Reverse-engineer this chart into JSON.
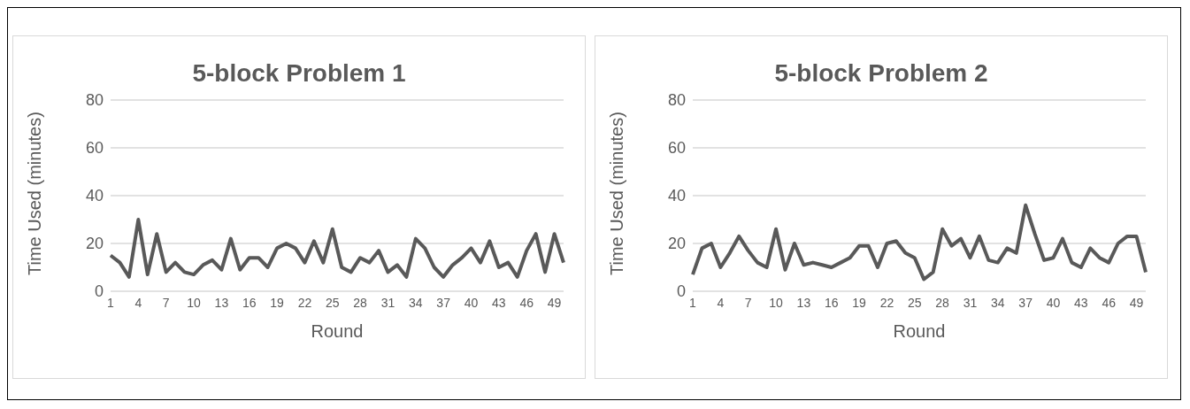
{
  "chart_data": [
    {
      "type": "line",
      "title": "5-block Problem 1",
      "xlabel": "Round",
      "ylabel": "Time Used (minutes)",
      "categories": [
        "1",
        null,
        null,
        "4",
        null,
        null,
        "7",
        null,
        null,
        "10",
        null,
        null,
        "13",
        null,
        null,
        "16",
        null,
        null,
        "19",
        null,
        null,
        "22",
        null,
        null,
        "25",
        null,
        null,
        "28",
        null,
        null,
        "31",
        null,
        null,
        "34",
        null,
        null,
        "37",
        null,
        null,
        "40",
        null,
        null,
        "43",
        null,
        null,
        "46",
        null,
        null,
        "49",
        null
      ],
      "series": [
        {
          "color": "#595959",
          "values": [
            15,
            12,
            6,
            30,
            7,
            24,
            8,
            12,
            8,
            7,
            11,
            13,
            9,
            22,
            9,
            14,
            14,
            10,
            18,
            20,
            18,
            12,
            21,
            12,
            26,
            10,
            8,
            14,
            12,
            17,
            8,
            11,
            6,
            22,
            18,
            10,
            6,
            11,
            14,
            18,
            12,
            21,
            10,
            12,
            6,
            17,
            24,
            8,
            24,
            12
          ]
        }
      ],
      "ylim": [
        0,
        80
      ],
      "yticks": [
        0,
        20,
        40,
        60,
        80
      ],
      "grid": "y",
      "marker": "none",
      "line_style": "solid",
      "legend": false
    },
    {
      "type": "line",
      "title": "5-block Problem 2",
      "xlabel": "Round",
      "ylabel": "Time Used (minutes)",
      "categories": [
        "1",
        null,
        null,
        "4",
        null,
        null,
        "7",
        null,
        null,
        "10",
        null,
        null,
        "13",
        null,
        null,
        "16",
        null,
        null,
        "19",
        null,
        null,
        "22",
        null,
        null,
        "25",
        null,
        null,
        "28",
        null,
        null,
        "31",
        null,
        null,
        "34",
        null,
        null,
        "37",
        null,
        null,
        "40",
        null,
        null,
        "43",
        null,
        null,
        "46",
        null,
        null,
        "49",
        null
      ],
      "series": [
        {
          "color": "#595959",
          "values": [
            7,
            18,
            20,
            10,
            16,
            23,
            17,
            12,
            10,
            26,
            9,
            20,
            11,
            12,
            11,
            10,
            12,
            14,
            19,
            19,
            10,
            20,
            21,
            16,
            14,
            5,
            8,
            26,
            19,
            22,
            14,
            23,
            13,
            12,
            18,
            16,
            36,
            24,
            13,
            14,
            22,
            12,
            10,
            18,
            14,
            12,
            20,
            23,
            23,
            8
          ]
        }
      ],
      "ylim": [
        0,
        80
      ],
      "yticks": [
        0,
        20,
        40,
        60,
        80
      ],
      "grid": "y",
      "marker": "none",
      "line_style": "solid",
      "legend": false
    }
  ]
}
